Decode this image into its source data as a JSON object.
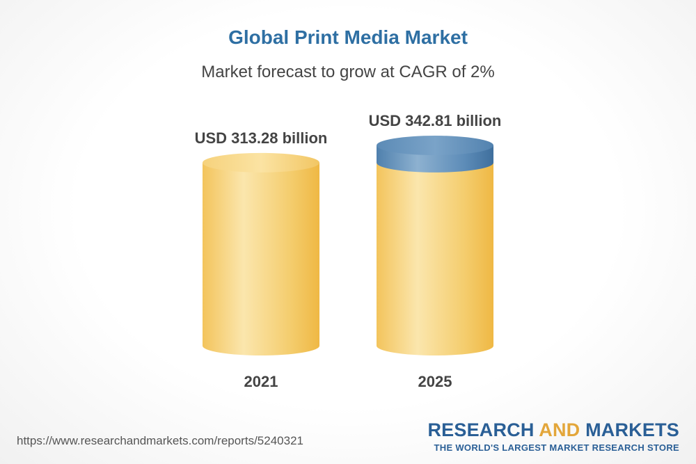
{
  "header": {
    "title": "Global Print Media Market",
    "subtitle": "Market forecast to grow at CAGR of 2%"
  },
  "chart_data": {
    "type": "bar",
    "categories": [
      "2021",
      "2025"
    ],
    "values": [
      313.28,
      342.81
    ],
    "value_labels": [
      "USD 313.28 billion",
      "USD 342.81 billion"
    ],
    "unit": "USD billion",
    "title": "Global Print Media Market",
    "subtitle": "Market forecast to grow at CAGR of 2%",
    "xlabel": "",
    "ylabel": "",
    "grid": false,
    "colors": {
      "body": "#f2c45a",
      "body_highlight": "#fbe7b0",
      "growth_cap": "#4d7fad",
      "growth_cap_highlight": "#8fb3d1"
    }
  },
  "footer": {
    "url": "https://www.researchandmarkets.com/reports/5240321",
    "brand_part1": "RESEARCH ",
    "brand_part2": "AND",
    "brand_part3": " MARKETS",
    "tagline": "THE WORLD'S LARGEST MARKET RESEARCH STORE"
  }
}
